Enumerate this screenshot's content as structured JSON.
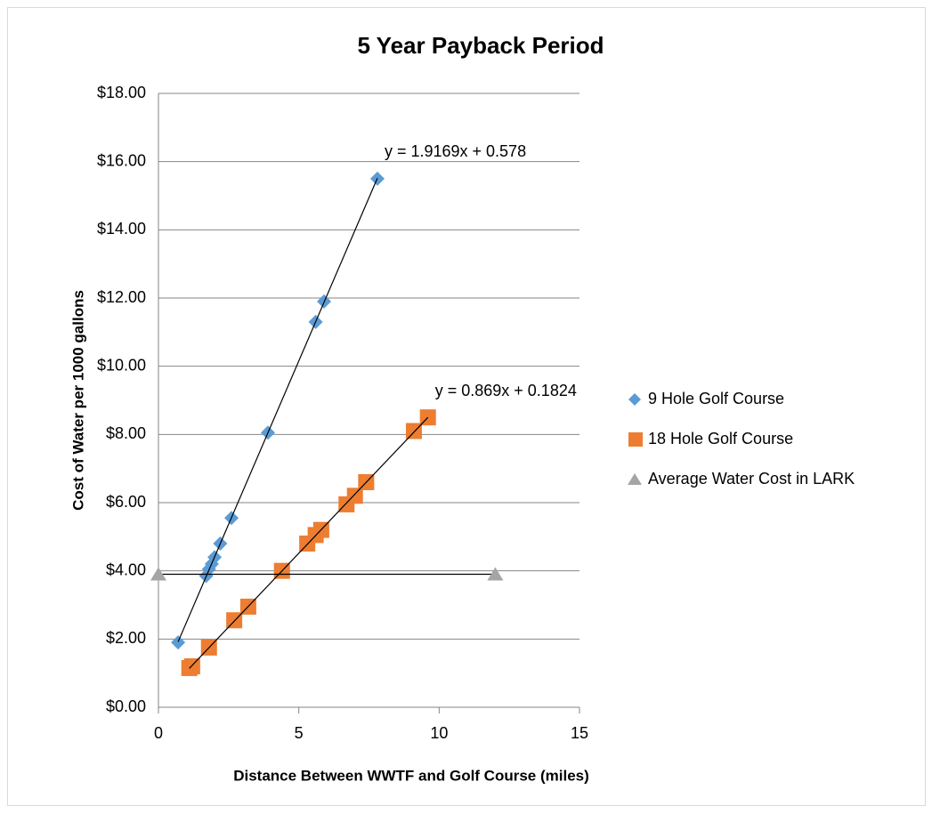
{
  "chart_data": {
    "type": "scatter",
    "title": "5 Year Payback Period",
    "x_label": "Distance Between WWTF and Golf Course (miles)",
    "y_label": "Cost of Water per 1000 gallons",
    "xlim": [
      0,
      15
    ],
    "xticks": [
      0,
      5,
      10,
      15
    ],
    "ylim": [
      0,
      18
    ],
    "yticks": [
      {
        "value": 0,
        "label": "$0.00"
      },
      {
        "value": 2,
        "label": "$2.00"
      },
      {
        "value": 4,
        "label": "$4.00"
      },
      {
        "value": 6,
        "label": "$6.00"
      },
      {
        "value": 8,
        "label": "$8.00"
      },
      {
        "value": 10,
        "label": "$10.00"
      },
      {
        "value": 12,
        "label": "$12.00"
      },
      {
        "value": 14,
        "label": "$14.00"
      },
      {
        "value": 16,
        "label": "$16.00"
      },
      {
        "value": 18,
        "label": "$18.00"
      }
    ],
    "grid": true,
    "legend": "right",
    "series": [
      {
        "name": "9 Hole Golf Course",
        "color": "#5b9bd5",
        "marker": "diamond",
        "trendline": true,
        "trendline_label": "y = 1.9169x + 0.578",
        "x": [
          0.7,
          1.7,
          1.8,
          1.9,
          2.0,
          2.2,
          2.6,
          3.9,
          5.6,
          5.9,
          7.8
        ],
        "values": [
          1.9,
          3.85,
          4.05,
          4.2,
          4.4,
          4.8,
          5.55,
          8.05,
          11.3,
          11.9,
          15.5
        ]
      },
      {
        "name": "18 Hole Golf Course",
        "color": "#ed7d31",
        "marker": "square",
        "trendline": true,
        "trendline_label": "y = 0.869x + 0.1824",
        "x": [
          1.1,
          1.2,
          1.8,
          2.7,
          3.2,
          4.4,
          5.3,
          5.6,
          5.8,
          6.7,
          7.0,
          7.4,
          9.1,
          9.6
        ],
        "values": [
          1.15,
          1.2,
          1.75,
          2.55,
          2.95,
          4.0,
          4.8,
          5.05,
          5.2,
          5.95,
          6.2,
          6.6,
          8.1,
          8.5
        ]
      },
      {
        "name": "Average Water Cost in LARK",
        "color": "#a5a5a5",
        "marker": "triangle",
        "line": true,
        "x": [
          0,
          12
        ],
        "values": [
          3.9,
          3.9
        ]
      }
    ]
  }
}
